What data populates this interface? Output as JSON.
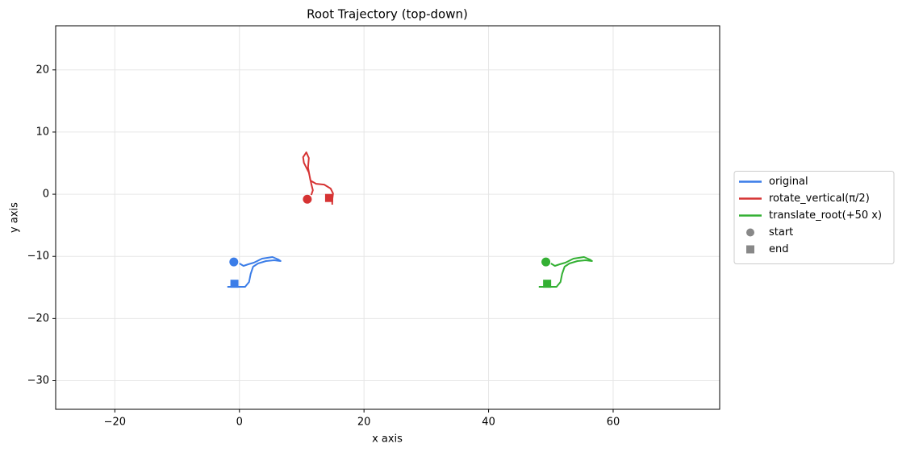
{
  "chart_data": {
    "type": "line",
    "title": "Root Trajectory (top-down)",
    "x_label": "x axis",
    "y_label": "y axis",
    "xlim": [
      -29.5,
      77.1
    ],
    "ylim": [
      -34.6,
      27.1
    ],
    "xticks": [
      {
        "value": -20,
        "label": "−20"
      },
      0,
      20,
      40,
      60
    ],
    "yticks": [
      {
        "value": -30,
        "label": "−30"
      },
      {
        "value": -20,
        "label": "−20"
      },
      {
        "value": -10,
        "label": "−10"
      },
      0,
      10,
      20
    ],
    "grid": true,
    "legend_position": "right",
    "series": [
      {
        "name": "original",
        "color": "#3b7de8",
        "x": [
          0.0,
          0.65,
          1.42,
          2.33,
          3.63,
          5.31,
          6.22,
          6.61,
          5.57,
          4.27,
          2.98,
          2.2,
          1.81,
          1.55,
          0.91,
          -0.26,
          -1.55,
          -1.94
        ],
        "values": [
          -11.14,
          -11.53,
          -11.27,
          -11.01,
          -10.36,
          -10.1,
          -10.49,
          -10.75,
          -10.62,
          -10.75,
          -11.14,
          -11.66,
          -12.82,
          -14.12,
          -14.9,
          -14.9,
          -14.9,
          -14.9
        ],
        "start": {
          "x": -0.9,
          "y": -10.9
        },
        "end": {
          "x": -0.8,
          "y": -14.4
        }
      },
      {
        "name": "rotate_vertical(π/2)",
        "color": "#d63333",
        "x": [
          11.53,
          11.79,
          11.53,
          11.14,
          10.36,
          10.23,
          10.75,
          11.14,
          11.01,
          11.4,
          12.31,
          13.6,
          14.64,
          15.03,
          14.9,
          14.9
        ],
        "values": [
          -0.13,
          0.65,
          1.68,
          3.5,
          5.05,
          5.96,
          6.74,
          5.83,
          4.27,
          2.2,
          1.68,
          1.55,
          0.91,
          0.13,
          -0.91,
          -1.68
        ],
        "start": {
          "x": 10.9,
          "y": -0.8
        },
        "end": {
          "x": 14.4,
          "y": -0.6
        }
      },
      {
        "name": "translate_root(+50 x)",
        "color": "#33b033",
        "x": [
          50.0,
          50.65,
          51.42,
          52.33,
          53.63,
          55.31,
          56.22,
          56.61,
          55.57,
          54.27,
          52.98,
          52.2,
          51.81,
          51.55,
          50.91,
          49.74,
          48.45,
          48.06
        ],
        "values": [
          -11.14,
          -11.53,
          -11.27,
          -11.01,
          -10.36,
          -10.1,
          -10.49,
          -10.75,
          -10.62,
          -10.75,
          -11.14,
          -11.66,
          -12.82,
          -14.12,
          -14.9,
          -14.9,
          -14.9,
          -14.9
        ],
        "start": {
          "x": 49.2,
          "y": -10.9
        },
        "end": {
          "x": 49.4,
          "y": -14.4
        }
      }
    ],
    "legend_markers": [
      {
        "name": "start",
        "shape": "circle",
        "color": "#888888"
      },
      {
        "name": "end",
        "shape": "square",
        "color": "#888888"
      }
    ]
  }
}
